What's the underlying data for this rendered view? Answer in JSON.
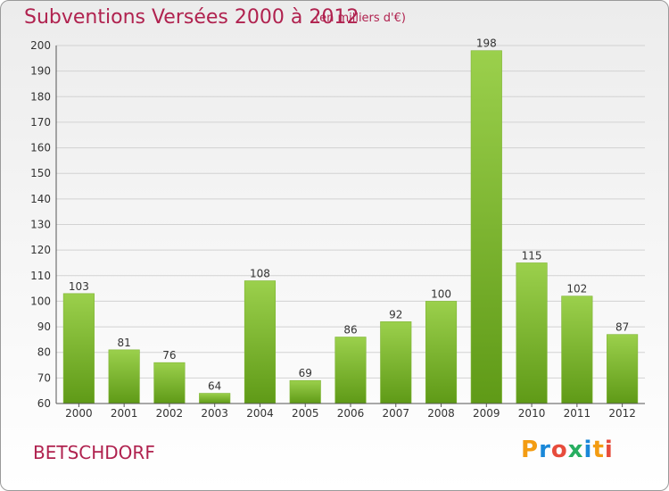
{
  "header": {
    "title": "Subventions Versées 2000 à 2012",
    "subtitle": "(en milliers d'€)"
  },
  "footer": {
    "commune": "BETSCHDORF",
    "logo_text": "Proxiti"
  },
  "colors": {
    "accent": "#b0224f",
    "bar_light": "#9bd04c",
    "bar_dark": "#5f9a17",
    "logo_letters": [
      "#f39c12",
      "#1a88d8",
      "#e74c3c",
      "#27ae60",
      "#1a88d8",
      "#f39c12",
      "#e74c3c"
    ]
  },
  "chart_data": {
    "type": "bar",
    "title": "Subventions Versées 2000 à 2012",
    "subtitle": "(en milliers d'€)",
    "xlabel": "",
    "ylabel": "",
    "categories": [
      "2000",
      "2001",
      "2002",
      "2003",
      "2004",
      "2005",
      "2006",
      "2007",
      "2008",
      "2009",
      "2010",
      "2011",
      "2012"
    ],
    "values": [
      103,
      81,
      76,
      64,
      108,
      69,
      86,
      92,
      100,
      198,
      115,
      102,
      87
    ],
    "ylim": [
      60,
      200
    ],
    "yticks": [
      60,
      70,
      80,
      90,
      100,
      110,
      120,
      130,
      140,
      150,
      160,
      170,
      180,
      190,
      200
    ],
    "grid": true
  }
}
